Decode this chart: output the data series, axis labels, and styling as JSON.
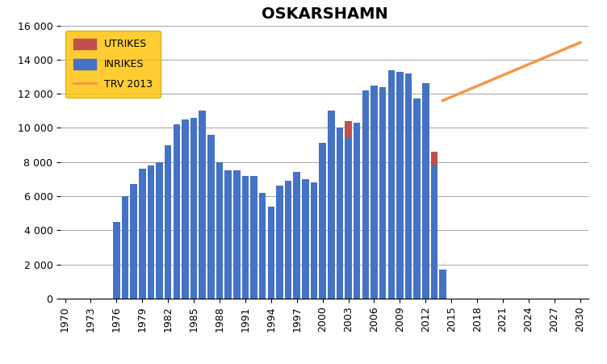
{
  "title": "OSKARSHAMN",
  "years": [
    1976,
    1977,
    1978,
    1979,
    1980,
    1981,
    1982,
    1983,
    1984,
    1985,
    1986,
    1987,
    1988,
    1989,
    1990,
    1991,
    1992,
    1993,
    1994,
    1995,
    1996,
    1997,
    1998,
    1999,
    2000,
    2001,
    2002,
    2003,
    2004,
    2005,
    2006,
    2007,
    2008,
    2009,
    2010,
    2011,
    2012,
    2013,
    2014
  ],
  "inrikes": [
    4500,
    6000,
    6700,
    7600,
    7800,
    8000,
    9000,
    10200,
    10500,
    10600,
    11000,
    9600,
    8000,
    7500,
    7500,
    7200,
    7200,
    6200,
    5400,
    6600,
    6900,
    7400,
    7000,
    6800,
    9100,
    11000,
    10000,
    9400,
    10300,
    12200,
    12500,
    12400,
    13400,
    13300,
    13200,
    11700,
    12600,
    7800,
    1700
  ],
  "utrikes": [
    0,
    0,
    0,
    0,
    0,
    0,
    0,
    0,
    0,
    0,
    0,
    0,
    0,
    0,
    0,
    0,
    0,
    0,
    0,
    0,
    0,
    0,
    0,
    0,
    0,
    0,
    0,
    1000,
    0,
    0,
    0,
    0,
    0,
    0,
    0,
    0,
    0,
    800,
    0
  ],
  "trv_years": [
    2014,
    2030
  ],
  "trv_values": [
    11600,
    15000
  ],
  "inrikes_color": "#4472C4",
  "utrikes_color": "#C0504D",
  "trv_color": "#F79646",
  "legend_bg_color": "#FFC000",
  "xlim_min": 1969.5,
  "xlim_max": 2031,
  "ylim_min": 0,
  "ylim_max": 16000,
  "xticks": [
    1970,
    1973,
    1976,
    1979,
    1982,
    1985,
    1988,
    1991,
    1994,
    1997,
    2000,
    2003,
    2006,
    2009,
    2012,
    2015,
    2018,
    2021,
    2024,
    2027,
    2030
  ],
  "yticks": [
    0,
    2000,
    4000,
    6000,
    8000,
    10000,
    12000,
    14000,
    16000
  ],
  "ytick_labels": [
    "0",
    "2 000",
    "4 000",
    "6 000",
    "8 000",
    "10 000",
    "12 000",
    "14 000",
    "16 000"
  ],
  "bar_width": 0.8,
  "title_fontsize": 14,
  "tick_fontsize": 9,
  "legend_fontsize": 9
}
